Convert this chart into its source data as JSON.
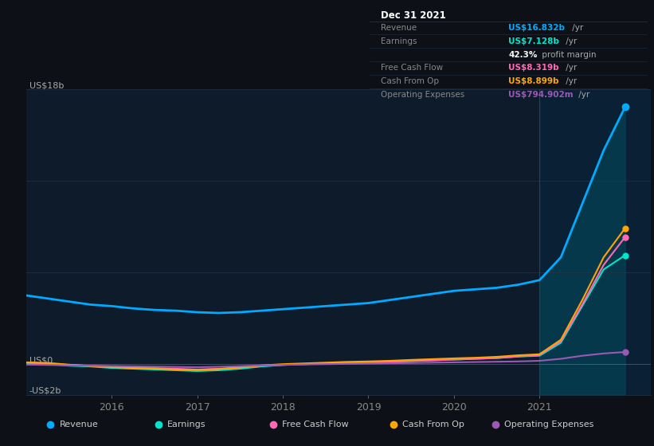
{
  "background_color": "#0d1117",
  "plot_bg_color": "#0d1b2a",
  "grid_color": "#243447",
  "years": [
    2015.0,
    2015.25,
    2015.5,
    2015.75,
    2016.0,
    2016.25,
    2016.5,
    2016.75,
    2017.0,
    2017.25,
    2017.5,
    2017.75,
    2018.0,
    2018.25,
    2018.5,
    2018.75,
    2019.0,
    2019.25,
    2019.5,
    2019.75,
    2020.0,
    2020.25,
    2020.5,
    2020.75,
    2021.0,
    2021.25,
    2021.5,
    2021.75,
    2022.0
  ],
  "revenue": [
    4.5,
    4.3,
    4.1,
    3.9,
    3.8,
    3.65,
    3.55,
    3.5,
    3.4,
    3.35,
    3.4,
    3.5,
    3.6,
    3.7,
    3.8,
    3.9,
    4.0,
    4.2,
    4.4,
    4.6,
    4.8,
    4.9,
    5.0,
    5.2,
    5.5,
    7.0,
    10.5,
    14.0,
    16.832
  ],
  "earnings": [
    0.05,
    0.02,
    -0.1,
    -0.15,
    -0.25,
    -0.3,
    -0.35,
    -0.4,
    -0.45,
    -0.4,
    -0.3,
    -0.15,
    -0.05,
    0.0,
    0.05,
    0.1,
    0.1,
    0.15,
    0.2,
    0.25,
    0.3,
    0.35,
    0.4,
    0.5,
    0.55,
    1.4,
    3.8,
    6.2,
    7.128
  ],
  "free_cash_flow": [
    0.1,
    0.05,
    -0.05,
    -0.1,
    -0.15,
    -0.2,
    -0.25,
    -0.3,
    -0.35,
    -0.3,
    -0.2,
    -0.1,
    -0.05,
    0.0,
    0.05,
    0.1,
    0.1,
    0.15,
    0.2,
    0.25,
    0.3,
    0.35,
    0.4,
    0.5,
    0.6,
    1.5,
    3.9,
    6.5,
    8.319
  ],
  "cash_from_op": [
    0.12,
    0.08,
    -0.03,
    -0.12,
    -0.2,
    -0.25,
    -0.3,
    -0.35,
    -0.38,
    -0.32,
    -0.22,
    -0.08,
    0.0,
    0.05,
    0.1,
    0.15,
    0.18,
    0.22,
    0.28,
    0.33,
    0.38,
    0.42,
    0.48,
    0.58,
    0.65,
    1.6,
    4.2,
    7.0,
    8.899
  ],
  "operating_expenses": [
    -0.03,
    -0.05,
    -0.08,
    -0.1,
    -0.12,
    -0.14,
    -0.16,
    -0.18,
    -0.2,
    -0.17,
    -0.13,
    -0.08,
    -0.05,
    -0.02,
    0.0,
    0.02,
    0.04,
    0.06,
    0.08,
    0.1,
    0.12,
    0.14,
    0.16,
    0.18,
    0.22,
    0.35,
    0.55,
    0.7,
    0.794902
  ],
  "ylim": [
    -2,
    18
  ],
  "xlim": [
    2015.0,
    2022.3
  ],
  "xticks": [
    2016,
    2017,
    2018,
    2019,
    2020,
    2021
  ],
  "colors": {
    "revenue": "#00aaff",
    "earnings": "#00e5cc",
    "free_cash_flow": "#ff69b4",
    "cash_from_op": "#ffa500",
    "operating_expenses": "#9b59b6"
  },
  "highlight_x": 2021.0,
  "info_box": {
    "title": "Dec 31 2021",
    "rows": [
      {
        "label": "Revenue",
        "value": "US$16.832b",
        "suffix": " /yr",
        "value_color": "#00aaff",
        "label_color": "#888888"
      },
      {
        "label": "Earnings",
        "value": "US$7.128b",
        "suffix": " /yr",
        "value_color": "#00e5cc",
        "label_color": "#888888"
      },
      {
        "label": "",
        "value": "42.3%",
        "suffix": " profit margin",
        "value_color": "#ffffff",
        "label_color": "#888888"
      },
      {
        "label": "Free Cash Flow",
        "value": "US$8.319b",
        "suffix": " /yr",
        "value_color": "#ff69b4",
        "label_color": "#888888"
      },
      {
        "label": "Cash From Op",
        "value": "US$8.899b",
        "suffix": " /yr",
        "value_color": "#ffa500",
        "label_color": "#888888"
      },
      {
        "label": "Operating Expenses",
        "value": "US$794.902m",
        "suffix": " /yr",
        "value_color": "#9b59b6",
        "label_color": "#888888"
      }
    ]
  },
  "legend": [
    {
      "label": "Revenue",
      "color": "#00aaff"
    },
    {
      "label": "Earnings",
      "color": "#00e5cc"
    },
    {
      "label": "Free Cash Flow",
      "color": "#ff69b4"
    },
    {
      "label": "Cash From Op",
      "color": "#ffa500"
    },
    {
      "label": "Operating Expenses",
      "color": "#9b59b6"
    }
  ]
}
